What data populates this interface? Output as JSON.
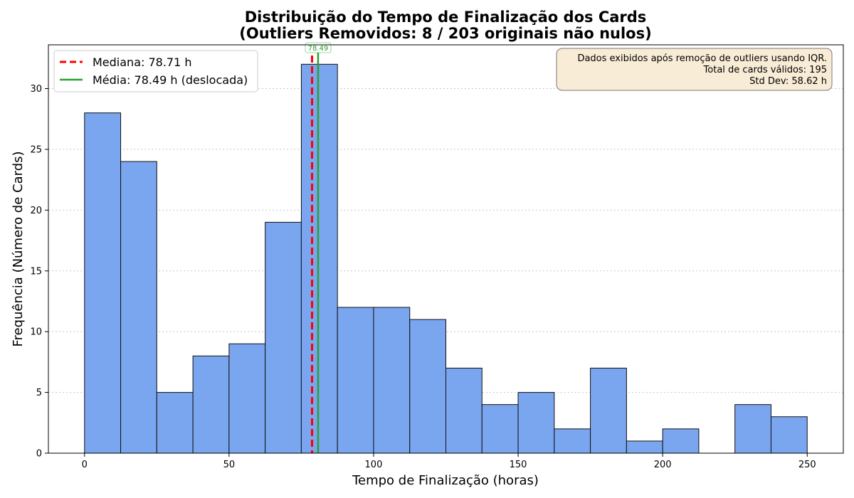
{
  "chart_data": {
    "type": "bar",
    "title_line1": "Distribuição do Tempo de Finalização dos Cards",
    "title_line2": "(Outliers Removidos: 8 / 203 originais não nulos)",
    "xlabel": "Tempo de Finalização (horas)",
    "ylabel": "Frequência (Número de Cards)",
    "xlim": [
      -12.5,
      262.5
    ],
    "ylim": [
      0,
      33.6
    ],
    "xticks": [
      0,
      50,
      100,
      150,
      200,
      250
    ],
    "yticks": [
      0,
      5,
      10,
      15,
      20,
      25,
      30
    ],
    "grid": "y-dotted",
    "bin_width": 12.5,
    "bins": [
      {
        "start": 0,
        "count": 28
      },
      {
        "start": 12.5,
        "count": 24
      },
      {
        "start": 25,
        "count": 5
      },
      {
        "start": 37.5,
        "count": 8
      },
      {
        "start": 50,
        "count": 9
      },
      {
        "start": 62.5,
        "count": 19
      },
      {
        "start": 75,
        "count": 32
      },
      {
        "start": 87.5,
        "count": 12
      },
      {
        "start": 100,
        "count": 12
      },
      {
        "start": 112.5,
        "count": 11
      },
      {
        "start": 125,
        "count": 7
      },
      {
        "start": 137.5,
        "count": 4
      },
      {
        "start": 150,
        "count": 5
      },
      {
        "start": 162.5,
        "count": 2
      },
      {
        "start": 175,
        "count": 7
      },
      {
        "start": 187.5,
        "count": 1
      },
      {
        "start": 200,
        "count": 2
      },
      {
        "start": 212.5,
        "count": 0
      },
      {
        "start": 225,
        "count": 4
      },
      {
        "start": 237.5,
        "count": 3
      }
    ],
    "lines": {
      "median": {
        "value": 78.71,
        "label": "Mediana: 78.71 h",
        "color": "#ff0000",
        "style": "dashed"
      },
      "mean": {
        "value": 80.8,
        "label": "Média: 78.49 h (deslocada)",
        "tag": "78.49",
        "color": "#2ca02c",
        "style": "solid"
      }
    },
    "legend_position": "top-left",
    "info_box": {
      "position": "top-right",
      "lines": [
        "Dados exibidos após remoção de outliers usando IQR.",
        "Total de cards válidos: 195",
        "Std Dev: 58.62 h"
      ]
    },
    "colors": {
      "bar_fill": "#7aa5ef",
      "bar_edge": "#111111",
      "grid": "#c8c8c8",
      "info_box_fill": "#f8ecd6",
      "info_box_edge": "#777777"
    }
  }
}
